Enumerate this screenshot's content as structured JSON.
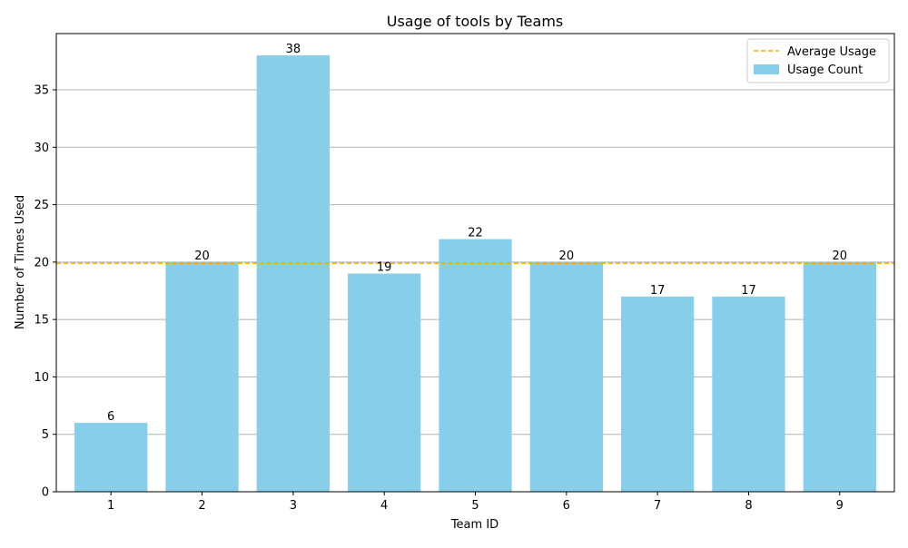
{
  "chart_data": {
    "type": "bar",
    "title": "Usage of tools by Teams",
    "xlabel": "Team ID",
    "ylabel": "Number of Times Used",
    "categories": [
      "1",
      "2",
      "3",
      "4",
      "5",
      "6",
      "7",
      "8",
      "9"
    ],
    "values": [
      6,
      20,
      38,
      19,
      22,
      20,
      17,
      17,
      20
    ],
    "average": 19.89,
    "ylim": [
      0,
      39.9
    ],
    "yticks": [
      0,
      5,
      10,
      15,
      20,
      25,
      30,
      35
    ],
    "grid": "horizontal",
    "legend_placement": "top-right",
    "legend": [
      {
        "label": "Average Usage",
        "kind": "dashed-line",
        "color": "#FFA500"
      },
      {
        "label": "Usage Count",
        "kind": "bar",
        "color": "#87CEEB"
      }
    ],
    "colors": {
      "bar": "#87CEEB",
      "average_line": "#FFA500",
      "grid": "#b0b0b0",
      "axis": "#000000"
    }
  }
}
